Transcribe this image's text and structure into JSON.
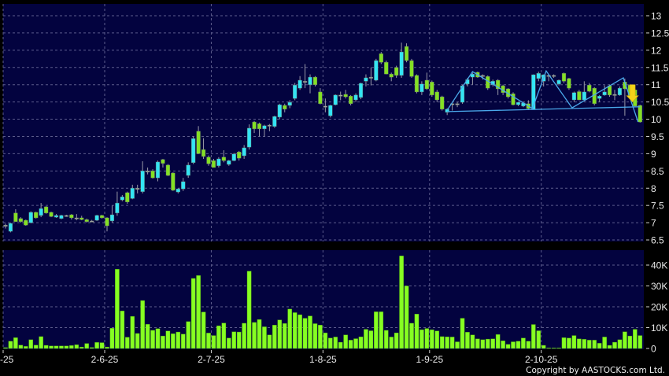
{
  "chart_data": [
    {
      "type": "candlestick",
      "panel": "price",
      "y_ticks": [
        "13",
        "12.5",
        "12",
        "11.5",
        "11",
        "10.5",
        "10",
        "9.5",
        "9",
        "8.5",
        "8",
        "7.5",
        "7",
        "6.5"
      ],
      "ylim": [
        6.5,
        13
      ],
      "grid": true,
      "x_ticks": [
        {
          "bar": 0,
          "label": "-25"
        },
        {
          "bar": 20,
          "label": "2-6-25"
        },
        {
          "bar": 41,
          "label": "2-7-25"
        },
        {
          "bar": 63,
          "label": "1-8-25"
        },
        {
          "bar": 84,
          "label": "1-9-25"
        },
        {
          "bar": 106,
          "label": "2-10-25"
        }
      ],
      "ohlc_fields": [
        "open",
        "high",
        "low",
        "close"
      ],
      "candles": [
        [
          6.93,
          6.97,
          6.83,
          6.93
        ],
        [
          6.75,
          7.0,
          6.72,
          6.98
        ],
        [
          7.28,
          7.39,
          7.02,
          7.03
        ],
        [
          7.12,
          7.16,
          7.0,
          7.03
        ],
        [
          7.07,
          7.09,
          6.91,
          6.93
        ],
        [
          7.0,
          7.33,
          6.98,
          7.3
        ],
        [
          7.3,
          7.32,
          7.12,
          7.14
        ],
        [
          7.21,
          7.57,
          7.16,
          7.41
        ],
        [
          7.46,
          7.48,
          7.26,
          7.28
        ],
        [
          7.3,
          7.32,
          7.16,
          7.18
        ],
        [
          7.16,
          7.25,
          7.14,
          7.21
        ],
        [
          7.12,
          7.23,
          7.1,
          7.21
        ],
        [
          7.21,
          7.23,
          7.17,
          7.21
        ],
        [
          7.23,
          7.25,
          7.09,
          7.14
        ],
        [
          7.14,
          7.25,
          7.07,
          7.14
        ],
        [
          7.14,
          7.2,
          7.07,
          7.09
        ],
        [
          7.09,
          7.12,
          7.0,
          7.03
        ],
        [
          7.05,
          7.08,
          7.02,
          7.05
        ],
        [
          7.07,
          7.23,
          7.05,
          7.21
        ],
        [
          7.21,
          7.23,
          7.12,
          7.14
        ],
        [
          7.14,
          7.16,
          6.75,
          6.91
        ],
        [
          7.05,
          7.5,
          7.0,
          7.23
        ],
        [
          7.28,
          7.9,
          7.2,
          7.57
        ],
        [
          7.66,
          7.8,
          7.62,
          7.75
        ],
        [
          7.87,
          7.9,
          7.55,
          7.6
        ],
        [
          7.7,
          8.1,
          7.68,
          8.0
        ],
        [
          8.0,
          8.1,
          7.85,
          8.0
        ],
        [
          7.9,
          8.78,
          7.85,
          8.5
        ],
        [
          8.5,
          8.6,
          8.4,
          8.5
        ],
        [
          8.5,
          8.55,
          8.28,
          8.3
        ],
        [
          8.3,
          8.8,
          8.2,
          8.76
        ],
        [
          8.83,
          8.85,
          8.6,
          8.72
        ],
        [
          8.67,
          8.7,
          8.35,
          8.37
        ],
        [
          8.44,
          8.46,
          7.92,
          7.94
        ],
        [
          7.89,
          8.0,
          7.85,
          7.98
        ],
        [
          7.98,
          8.3,
          7.92,
          8.19
        ],
        [
          8.37,
          8.75,
          8.3,
          8.67
        ],
        [
          8.74,
          9.5,
          8.7,
          9.44
        ],
        [
          9.65,
          9.8,
          9.0,
          9.0
        ],
        [
          9.12,
          9.45,
          8.85,
          8.92
        ],
        [
          8.9,
          8.95,
          8.65,
          8.71
        ],
        [
          8.8,
          8.85,
          8.6,
          8.6
        ],
        [
          8.65,
          8.9,
          8.6,
          8.85
        ],
        [
          8.9,
          9.1,
          8.75,
          8.8
        ],
        [
          8.69,
          8.82,
          8.65,
          8.8
        ],
        [
          8.8,
          9.02,
          8.78,
          8.99
        ],
        [
          9.05,
          9.08,
          8.8,
          8.87
        ],
        [
          8.94,
          9.25,
          8.85,
          9.17
        ],
        [
          9.19,
          9.85,
          9.12,
          9.74
        ],
        [
          9.92,
          9.95,
          9.6,
          9.72
        ],
        [
          9.87,
          9.9,
          9.5,
          9.72
        ],
        [
          9.72,
          9.84,
          9.5,
          9.81
        ],
        [
          9.83,
          9.86,
          9.65,
          9.83
        ],
        [
          9.79,
          10.1,
          9.75,
          10.08
        ],
        [
          10.06,
          10.45,
          10.0,
          10.42
        ],
        [
          10.4,
          10.45,
          10.2,
          10.29
        ],
        [
          10.4,
          10.55,
          10.32,
          10.49
        ],
        [
          10.6,
          11.05,
          10.55,
          10.99
        ],
        [
          10.9,
          11.25,
          10.85,
          11.13
        ],
        [
          11.1,
          11.6,
          10.9,
          11.1
        ],
        [
          11.0,
          11.3,
          10.75,
          11.22
        ],
        [
          11.22,
          11.25,
          10.95,
          11.0
        ],
        [
          10.79,
          10.9,
          10.43,
          10.45
        ],
        [
          10.38,
          10.6,
          10.2,
          10.38
        ],
        [
          10.1,
          10.42,
          10.05,
          10.4
        ],
        [
          10.42,
          10.72,
          10.4,
          10.7
        ],
        [
          10.7,
          10.8,
          10.55,
          10.7
        ],
        [
          10.72,
          10.85,
          10.6,
          10.65
        ],
        [
          10.67,
          10.7,
          10.4,
          10.45
        ],
        [
          10.56,
          10.75,
          10.5,
          10.7
        ],
        [
          10.63,
          11.06,
          10.58,
          11.04
        ],
        [
          11.1,
          11.3,
          10.95,
          11.2
        ],
        [
          11.22,
          11.5,
          10.98,
          11.22
        ],
        [
          11.13,
          11.75,
          11.1,
          11.7
        ],
        [
          11.9,
          11.95,
          11.6,
          11.65
        ],
        [
          11.65,
          11.7,
          11.3,
          11.31
        ],
        [
          11.31,
          11.35,
          11.1,
          11.22
        ],
        [
          11.5,
          11.55,
          11.2,
          11.27
        ],
        [
          11.27,
          12.22,
          11.2,
          11.95
        ],
        [
          12.11,
          12.2,
          11.65,
          11.7
        ],
        [
          11.7,
          11.75,
          11.2,
          11.24
        ],
        [
          11.27,
          11.3,
          10.75,
          10.79
        ],
        [
          10.79,
          11.1,
          10.7,
          11.02
        ],
        [
          11.13,
          11.35,
          10.85,
          10.88
        ],
        [
          11.08,
          11.12,
          10.65,
          10.7
        ],
        [
          10.79,
          10.85,
          10.5,
          10.56
        ],
        [
          10.65,
          10.68,
          10.25,
          10.29
        ],
        [
          10.2,
          10.32,
          10.12,
          10.29
        ],
        [
          10.45,
          10.48,
          10.25,
          10.45
        ],
        [
          10.45,
          10.5,
          10.35,
          10.45
        ],
        [
          10.49,
          11.0,
          10.45,
          10.97
        ],
        [
          11.02,
          11.2,
          10.95,
          11.15
        ],
        [
          11.22,
          11.35,
          11.0,
          11.31
        ],
        [
          11.36,
          11.38,
          11.2,
          11.22
        ],
        [
          11.27,
          11.3,
          11.15,
          11.27
        ],
        [
          11.24,
          11.27,
          10.85,
          10.9
        ],
        [
          11.0,
          11.15,
          10.95,
          11.1
        ],
        [
          11.13,
          11.16,
          10.7,
          10.88
        ],
        [
          10.97,
          11.0,
          10.7,
          10.77
        ],
        [
          10.88,
          10.9,
          10.6,
          10.65
        ],
        [
          10.74,
          10.78,
          10.4,
          10.42
        ],
        [
          10.42,
          10.5,
          10.38,
          10.49
        ],
        [
          10.38,
          10.5,
          10.35,
          10.47
        ],
        [
          10.45,
          10.55,
          10.28,
          10.31
        ],
        [
          10.29,
          11.3,
          10.28,
          11.29
        ],
        [
          11.18,
          11.38,
          11.1,
          11.33
        ],
        [
          11.1,
          11.3,
          10.95,
          11.29
        ],
        [
          11.27,
          11.3,
          11.1,
          11.27
        ],
        [
          11.27,
          11.3,
          11.2,
          11.27
        ],
        [
          11.02,
          11.15,
          10.98,
          11.13
        ],
        [
          11.33,
          11.35,
          11.05,
          11.1
        ],
        [
          11.18,
          11.2,
          10.85,
          10.9
        ],
        [
          10.56,
          10.8,
          10.5,
          10.77
        ],
        [
          10.8,
          10.85,
          10.55,
          10.56
        ],
        [
          10.56,
          11.1,
          10.52,
          10.79
        ],
        [
          10.99,
          11.05,
          10.78,
          10.81
        ],
        [
          10.9,
          10.93,
          10.4,
          10.45
        ],
        [
          10.6,
          10.7,
          10.5,
          10.67
        ],
        [
          10.7,
          10.98,
          10.68,
          10.79
        ],
        [
          10.97,
          11.0,
          10.65,
          10.7
        ],
        [
          10.72,
          10.85,
          10.55,
          10.72
        ],
        [
          10.7,
          10.95,
          10.68,
          10.9
        ],
        [
          11.08,
          11.18,
          10.1,
          10.88
        ],
        [
          10.99,
          11.02,
          10.6,
          10.67
        ],
        [
          10.85,
          10.88,
          10.35,
          10.38
        ],
        [
          10.4,
          10.42,
          9.9,
          9.92
        ]
      ],
      "pattern_line": [
        [
          87,
          10.26
        ],
        [
          92,
          11.38
        ],
        [
          103.8,
          10.31
        ],
        [
          106.5,
          11.4
        ],
        [
          111.6,
          10.33
        ],
        [
          121.7,
          11.2
        ],
        [
          124.6,
          9.92
        ]
      ],
      "neckline": [
        [
          87,
          10.22
        ],
        [
          125,
          10.36
        ]
      ],
      "signal_arrow": {
        "bar": 123.5,
        "from": 11.0,
        "to": 10.5,
        "direction": "down"
      }
    },
    {
      "type": "bar",
      "panel": "volume",
      "y_ticks": [
        "40K",
        "30K",
        "20K",
        "10K",
        "0"
      ],
      "ylim": [
        0,
        47
      ],
      "unit": "K",
      "grid": true,
      "values": [
        0.4,
        3.5,
        5.2,
        1.6,
        1.0,
        4.2,
        1.6,
        5.7,
        1.5,
        1.2,
        1.2,
        1.2,
        1.2,
        1.4,
        1.8,
        0.7,
        2.4,
        0.5,
        2.9,
        2.8,
        0.7,
        9.7,
        38,
        18,
        5.4,
        15.4,
        7.2,
        23,
        11.6,
        8.7,
        9.5,
        6,
        8.4,
        7.1,
        7.9,
        6.9,
        12.9,
        33.6,
        35,
        17.5,
        7.4,
        6.2,
        10.9,
        12.2,
        5,
        8,
        7.9,
        12.1,
        37.1,
        12.5,
        13.9,
        10.4,
        6.5,
        11.2,
        13.7,
        12,
        18.9,
        17.2,
        16.2,
        14.5,
        15.6,
        11.9,
        11.2,
        7.5,
        5,
        5.5,
        3,
        6.5,
        4,
        4.7,
        5.6,
        9.2,
        8.5,
        17.6,
        17.6,
        8.7,
        5.5,
        7.5,
        44.4,
        30,
        12.1,
        16.5,
        9,
        9.6,
        9,
        8.4,
        5.7,
        5.6,
        5.5,
        3.2,
        14.5,
        7.8,
        6.5,
        4.6,
        4.2,
        4.5,
        4.6,
        6.7,
        3.7,
        2,
        3.2,
        3.5,
        5,
        3.5,
        11.5,
        8.5,
        1.5,
        0.3,
        0.3,
        0.3,
        5.2,
        5,
        6.2,
        4.6,
        4.4,
        4,
        4,
        2.5,
        5.5,
        1.5,
        3,
        4.2,
        8,
        6,
        9.2,
        6.2
      ]
    }
  ],
  "colors": {
    "background": "#000000",
    "panel": "#03033f",
    "grid": "#5c5c8c",
    "up_candle": "#33e4f4",
    "down_candle": "#84e024",
    "doji": "#a8a8a8",
    "wick": "#9a9aa8",
    "volume_bar": "#86ff22",
    "pattern_line": "#4aa8ea",
    "arrow": "#f4d418"
  },
  "footer": {
    "copyright": "Copyright by AASTOCKS.com Ltd."
  }
}
